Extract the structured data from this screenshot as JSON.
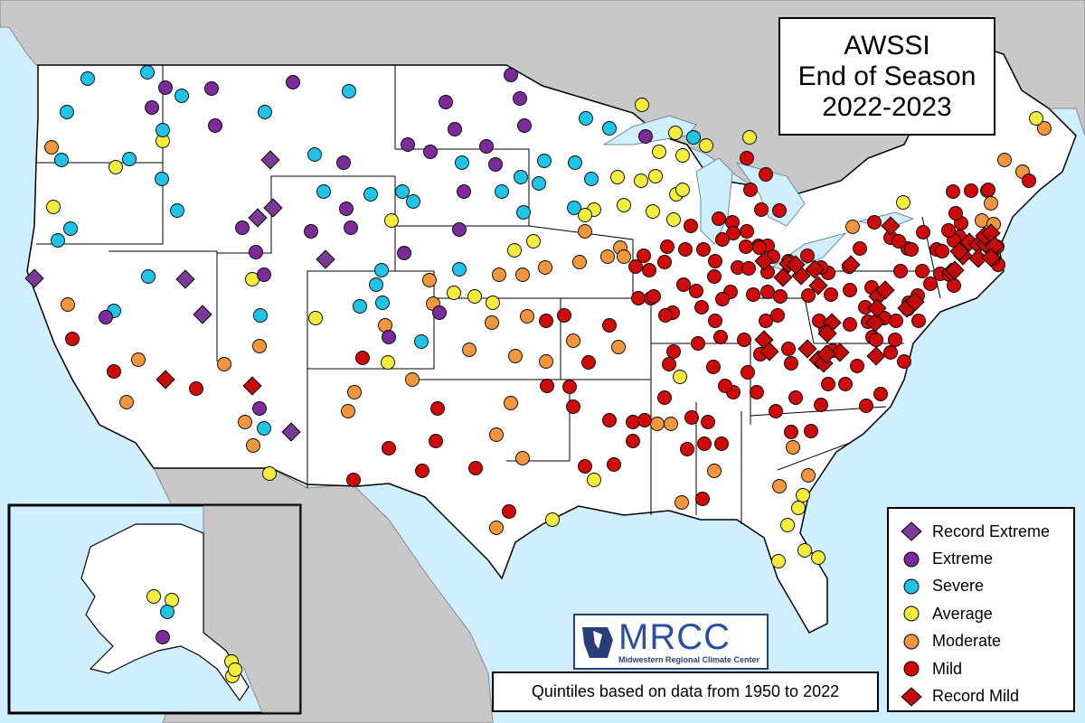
{
  "title": {
    "line1": "AWSSI",
    "line2": "End of Season",
    "line3": "2022-2023"
  },
  "note": "Quintiles based on data from 1950 to 2022",
  "logo": {
    "name": "MRCC",
    "subtitle": "Midwestern Regional Climate Center"
  },
  "colors": {
    "ocean": "#cfeeff",
    "foreign_land": "#c8c8c8",
    "us_land": "#ffffff",
    "record_extreme": "#7b3a96",
    "extreme": "#7b2c9a",
    "severe": "#1fc3e6",
    "average": "#f2ec3c",
    "moderate": "#f1963d",
    "mild": "#cf0a0a",
    "record_mild": "#c40b0b"
  },
  "legend": [
    {
      "key": "record_extreme",
      "label": "Record Extreme",
      "shape": "diamond"
    },
    {
      "key": "extreme",
      "label": "Extreme",
      "shape": "circle"
    },
    {
      "key": "severe",
      "label": "Severe",
      "shape": "circle"
    },
    {
      "key": "average",
      "label": "Average",
      "shape": "circle"
    },
    {
      "key": "moderate",
      "label": "Moderate",
      "shape": "circle"
    },
    {
      "key": "mild",
      "label": "Mild",
      "shape": "circle"
    },
    {
      "key": "record_mild",
      "label": "Record Mild",
      "shape": "diamond"
    }
  ]
}
